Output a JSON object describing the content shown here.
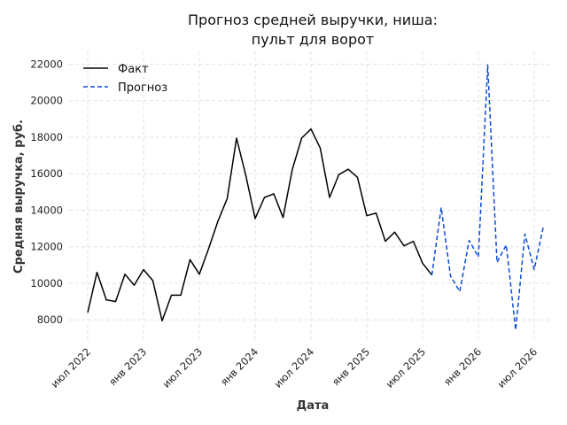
{
  "chart_data": {
    "type": "line",
    "title_lines": [
      "Прогноз средней выручки, ниша:",
      "пульт для ворот"
    ],
    "xlabel": "Дата",
    "ylabel": "Средняя выручка, руб.",
    "ylim": [
      6800,
      22700
    ],
    "yticks": [
      8000,
      10000,
      12000,
      14000,
      16000,
      18000,
      20000,
      22000
    ],
    "xlim": [
      "2022-05-01",
      "2026-09-01"
    ],
    "xticks": [
      {
        "date": "2022-07-01",
        "label": "июл 2022"
      },
      {
        "date": "2023-01-01",
        "label": "янв 2023"
      },
      {
        "date": "2023-07-01",
        "label": "июл 2023"
      },
      {
        "date": "2024-01-01",
        "label": "янв 2024"
      },
      {
        "date": "2024-07-01",
        "label": "июл 2024"
      },
      {
        "date": "2025-01-01",
        "label": "янв 2025"
      },
      {
        "date": "2025-07-01",
        "label": "июл 2025"
      },
      {
        "date": "2026-01-01",
        "label": "янв 2026"
      },
      {
        "date": "2026-07-01",
        "label": "июл 2026"
      }
    ],
    "grid": true,
    "legend_position": "top-left",
    "series": [
      {
        "name": "Факт",
        "color": "#000000",
        "style": "solid",
        "points": [
          [
            "2022-07-01",
            8400
          ],
          [
            "2022-08-01",
            10600
          ],
          [
            "2022-09-01",
            9100
          ],
          [
            "2022-10-01",
            9000
          ],
          [
            "2022-11-01",
            10500
          ],
          [
            "2022-12-01",
            9900
          ],
          [
            "2023-01-01",
            10750
          ],
          [
            "2023-02-01",
            10150
          ],
          [
            "2023-03-01",
            7950
          ],
          [
            "2023-04-01",
            9350
          ],
          [
            "2023-05-01",
            9350
          ],
          [
            "2023-06-01",
            11300
          ],
          [
            "2023-07-01",
            10500
          ],
          [
            "2023-08-01",
            11900
          ],
          [
            "2023-09-01",
            13400
          ],
          [
            "2023-10-01",
            14650
          ],
          [
            "2023-11-01",
            17950
          ],
          [
            "2023-12-01",
            15900
          ],
          [
            "2024-01-01",
            13550
          ],
          [
            "2024-02-01",
            14700
          ],
          [
            "2024-03-01",
            14900
          ],
          [
            "2024-04-01",
            13600
          ],
          [
            "2024-05-01",
            16250
          ],
          [
            "2024-06-01",
            17950
          ],
          [
            "2024-07-01",
            18450
          ],
          [
            "2024-08-01",
            17400
          ],
          [
            "2024-09-01",
            14700
          ],
          [
            "2024-10-01",
            15950
          ],
          [
            "2024-11-01",
            16250
          ],
          [
            "2024-12-01",
            15800
          ],
          [
            "2025-01-01",
            13700
          ],
          [
            "2025-02-01",
            13850
          ],
          [
            "2025-03-01",
            12300
          ],
          [
            "2025-04-01",
            12800
          ],
          [
            "2025-05-01",
            12050
          ],
          [
            "2025-06-01",
            12300
          ],
          [
            "2025-07-01",
            11100
          ],
          [
            "2025-08-01",
            10450
          ]
        ]
      },
      {
        "name": "Прогноз",
        "color": "#0b4bd6",
        "style": "dashed",
        "points": [
          [
            "2025-08-01",
            10450
          ],
          [
            "2025-09-01",
            14150
          ],
          [
            "2025-10-01",
            10400
          ],
          [
            "2025-11-01",
            9550
          ],
          [
            "2025-12-01",
            12350
          ],
          [
            "2026-01-01",
            11450
          ],
          [
            "2026-02-01",
            21950
          ],
          [
            "2026-03-01",
            11150
          ],
          [
            "2026-04-01",
            12100
          ],
          [
            "2026-05-01",
            7450
          ],
          [
            "2026-06-01",
            12700
          ],
          [
            "2026-07-01",
            10750
          ],
          [
            "2026-08-01",
            13150
          ]
        ]
      }
    ]
  }
}
